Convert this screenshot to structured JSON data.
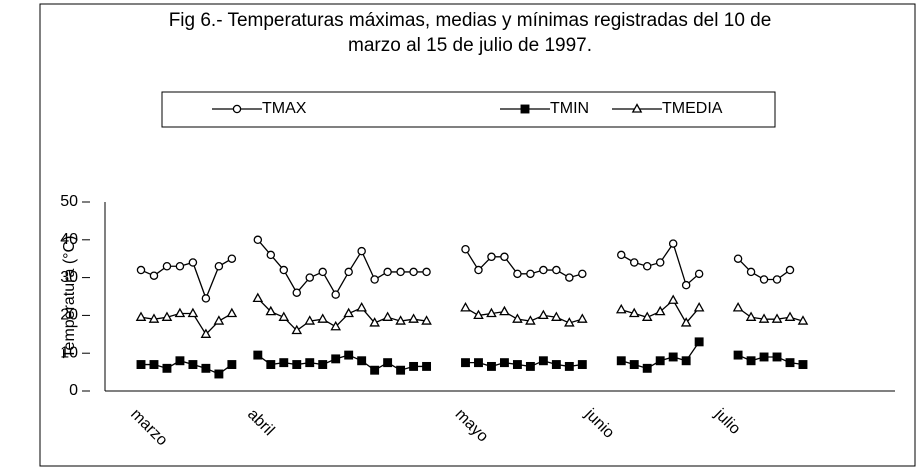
{
  "chart_data": {
    "type": "line",
    "title": [
      "Fig 6.- Temperaturas máximas, medias y mínimas  registradas del 10 de",
      "marzo al 15 de julio de 1997."
    ],
    "y_label": "Temperatura (°C)",
    "ylim": [
      0,
      50
    ],
    "yticks": [
      0,
      10,
      20,
      30,
      40,
      50
    ],
    "categories": [
      "marzo",
      null,
      null,
      null,
      null,
      null,
      null,
      null,
      null,
      "abril",
      null,
      null,
      null,
      null,
      null,
      null,
      null,
      null,
      null,
      null,
      null,
      null,
      null,
      null,
      null,
      "mayo",
      null,
      null,
      null,
      null,
      null,
      null,
      null,
      null,
      null,
      "junio",
      null,
      null,
      null,
      null,
      null,
      null,
      null,
      null,
      null,
      "julio",
      null,
      null,
      null,
      null,
      null,
      null
    ],
    "series": [
      {
        "name": "TMAX",
        "marker": "circle",
        "color": "#000000",
        "values": [
          32,
          30.5,
          33,
          33,
          34,
          24.5,
          33,
          35,
          null,
          40,
          36,
          32,
          26,
          30,
          31.5,
          25.5,
          31.5,
          37,
          29.5,
          31.5,
          31.5,
          31.5,
          31.5,
          null,
          null,
          37.5,
          32,
          35.5,
          35.5,
          31,
          31,
          32,
          32,
          30,
          31,
          null,
          null,
          36,
          34,
          33,
          34,
          39,
          28,
          31,
          null,
          null,
          35,
          31.5,
          29.5,
          29.5,
          32,
          null
        ]
      },
      {
        "name": "TMIN",
        "marker": "square",
        "color": "#000000",
        "values": [
          7,
          7,
          6,
          8,
          7,
          6,
          4.5,
          7,
          null,
          9.5,
          7,
          7.5,
          7,
          7.5,
          7,
          8.5,
          9.5,
          8,
          5.5,
          7.5,
          5.5,
          6.5,
          6.5,
          null,
          null,
          7.5,
          7.5,
          6.5,
          7.5,
          7,
          6.5,
          8,
          7,
          6.5,
          7,
          null,
          null,
          8,
          7,
          6,
          8,
          9,
          8,
          13,
          null,
          null,
          9.5,
          8,
          9,
          9,
          7.5,
          7
        ]
      },
      {
        "name": "TMEDIA",
        "marker": "triangle",
        "color": "#000000",
        "values": [
          19.5,
          19,
          19.5,
          20.5,
          20.5,
          15,
          18.5,
          20.5,
          null,
          24.5,
          21,
          19.5,
          16,
          18.5,
          19,
          17,
          20.5,
          22,
          18,
          19.5,
          18.5,
          19,
          18.5,
          null,
          null,
          22,
          20,
          20.5,
          21,
          19,
          18.5,
          20,
          19.5,
          18,
          19,
          null,
          null,
          21.5,
          20.5,
          19.5,
          21,
          24,
          18,
          22,
          null,
          null,
          22,
          19.5,
          19,
          19,
          19.5,
          18.5
        ]
      }
    ]
  }
}
